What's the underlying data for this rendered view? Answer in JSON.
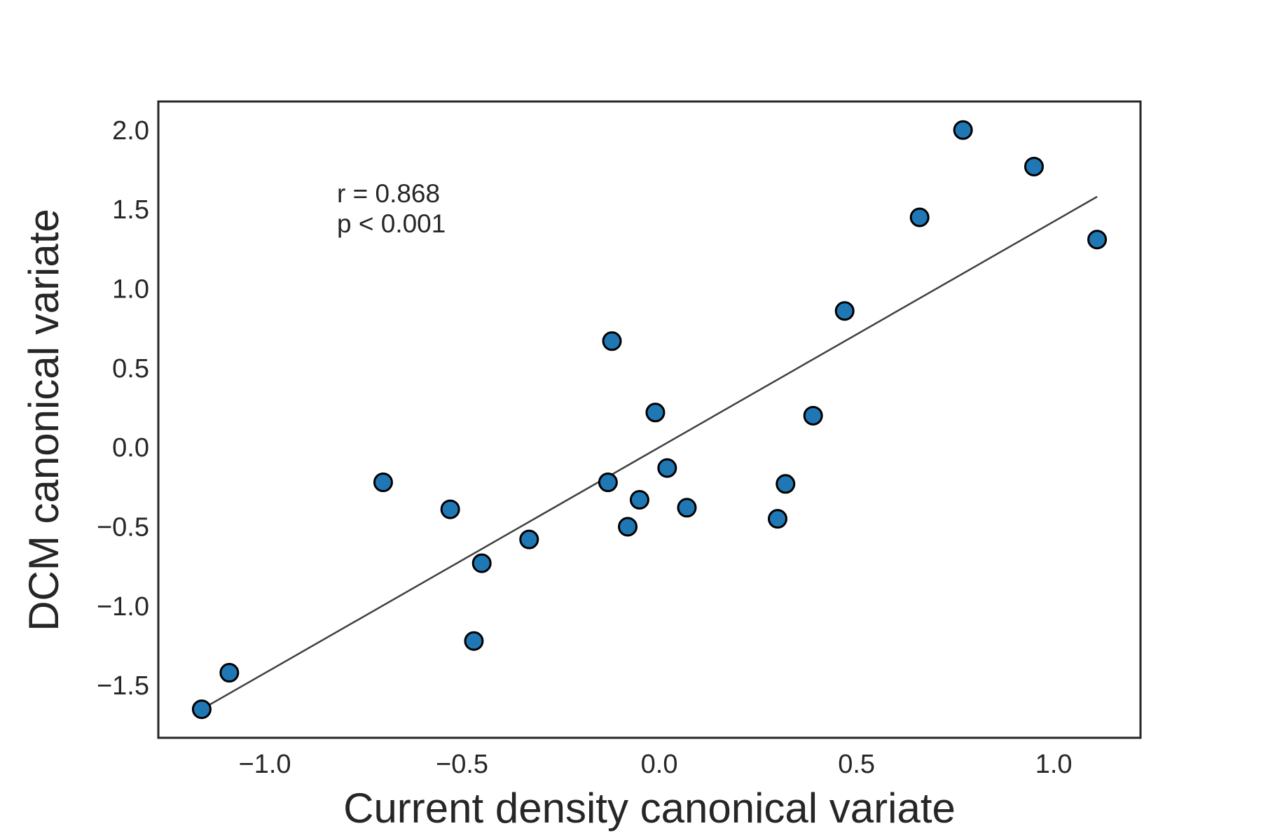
{
  "chart_data": {
    "type": "scatter",
    "title": "",
    "xlabel": "Current density canonical variate",
    "ylabel": "DCM canonical variate",
    "xlim": [
      -1.27,
      1.22
    ],
    "ylim": [
      -1.83,
      2.18
    ],
    "xticks": [
      -1.0,
      -0.5,
      0.0,
      0.5,
      1.0
    ],
    "xtick_labels": [
      "−1.0",
      "−0.5",
      "0.0",
      "0.5",
      "1.0"
    ],
    "yticks": [
      -1.5,
      -1.0,
      -0.5,
      0.0,
      0.5,
      1.0,
      1.5,
      2.0
    ],
    "ytick_labels": [
      "−1.5",
      "−1.0",
      "−0.5",
      "0.0",
      "0.5",
      "1.0",
      "1.5",
      "2.0"
    ],
    "grid": false,
    "legend": "none",
    "point_color": "#1f77b4",
    "edge_color": "#000000",
    "line_color": "#404040",
    "annotations": [
      "r = 0.868",
      "p < 0.001"
    ],
    "points": [
      {
        "x": -1.16,
        "y": -1.65
      },
      {
        "x": -1.09,
        "y": -1.42
      },
      {
        "x": -0.7,
        "y": -0.22
      },
      {
        "x": -0.53,
        "y": -0.39
      },
      {
        "x": -0.47,
        "y": -1.22
      },
      {
        "x": -0.45,
        "y": -0.73
      },
      {
        "x": -0.33,
        "y": -0.58
      },
      {
        "x": -0.13,
        "y": -0.22
      },
      {
        "x": -0.12,
        "y": 0.67
      },
      {
        "x": -0.08,
        "y": -0.5
      },
      {
        "x": -0.05,
        "y": -0.33
      },
      {
        "x": -0.01,
        "y": 0.22
      },
      {
        "x": 0.02,
        "y": -0.13
      },
      {
        "x": 0.07,
        "y": -0.38
      },
      {
        "x": 0.3,
        "y": -0.45
      },
      {
        "x": 0.32,
        "y": -0.23
      },
      {
        "x": 0.39,
        "y": 0.2
      },
      {
        "x": 0.47,
        "y": 0.86
      },
      {
        "x": 0.66,
        "y": 1.45
      },
      {
        "x": 0.77,
        "y": 2.0
      },
      {
        "x": 0.95,
        "y": 1.77
      },
      {
        "x": 1.11,
        "y": 1.31
      }
    ],
    "fit_line": {
      "x": [
        -1.16,
        1.11
      ],
      "y": [
        -1.65,
        1.58
      ]
    }
  }
}
